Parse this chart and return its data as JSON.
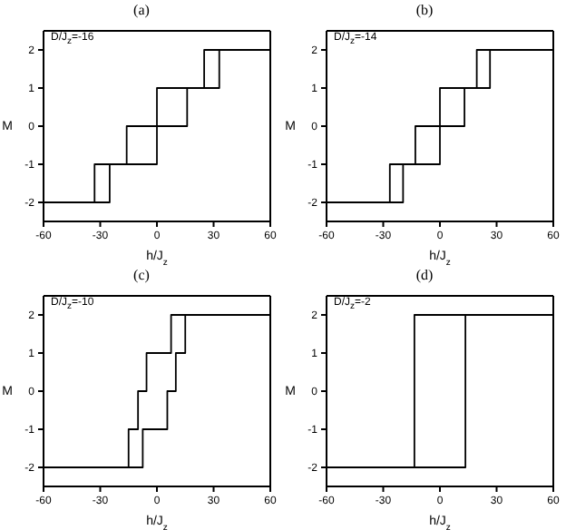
{
  "chart_data": [
    {
      "type": "step",
      "title": "(a)",
      "xlabel": "h/J$_{z}$",
      "ylabel": "M",
      "annotations": [
        "D/J$_{z}$=-16"
      ],
      "xlim": [
        -60,
        60
      ],
      "xticks": [
        -60,
        -30,
        0,
        30,
        60
      ],
      "ylim": [
        -2.5,
        2.5
      ],
      "yticks": [
        -2,
        -1,
        0,
        1,
        2
      ],
      "series": [
        {
          "color": "#000000",
          "x": [
            -60,
            -33,
            -16,
            0,
            25,
            60
          ],
          "values": [
            -2,
            -1,
            0,
            1,
            2,
            2
          ]
        },
        {
          "color": "#000000",
          "x": [
            -60,
            -25,
            0,
            16,
            33,
            60
          ],
          "values": [
            -2,
            -1,
            0,
            1,
            2,
            2
          ]
        }
      ]
    },
    {
      "type": "step",
      "title": "(b)",
      "xlabel": "h/J$_{z}$",
      "ylabel": "M",
      "annotations": [
        "D/J$_{z}$=-14"
      ],
      "xlim": [
        -60,
        60
      ],
      "xticks": [
        -60,
        -30,
        0,
        30,
        60
      ],
      "ylim": [
        -2.5,
        2.5
      ],
      "yticks": [
        -2,
        -1,
        0,
        1,
        2
      ],
      "series": [
        {
          "color": "#000000",
          "x": [
            -60,
            -26.5,
            -13,
            0,
            19.5,
            60
          ],
          "values": [
            -2,
            -1,
            0,
            1,
            2,
            2
          ]
        },
        {
          "color": "#000000",
          "x": [
            -60,
            -19.5,
            0,
            13,
            26.5,
            60
          ],
          "values": [
            -2,
            -1,
            0,
            1,
            2,
            2
          ]
        }
      ]
    },
    {
      "type": "step",
      "title": "(c)",
      "xlabel": "h/J$_{z}$",
      "ylabel": "M",
      "annotations": [
        "D/J$_{z}$=-10"
      ],
      "xlim": [
        -60,
        60
      ],
      "xticks": [
        -60,
        -30,
        0,
        30,
        60
      ],
      "ylim": [
        -2.5,
        2.5
      ],
      "yticks": [
        -2,
        -1,
        0,
        1,
        2
      ],
      "series": [
        {
          "color": "#000000",
          "x": [
            -60,
            -15,
            -10,
            -5.5,
            7.5,
            60
          ],
          "values": [
            -2,
            -1,
            0,
            1,
            2,
            2
          ]
        },
        {
          "color": "#000000",
          "x": [
            -60,
            -7.5,
            5.5,
            10,
            15,
            60
          ],
          "values": [
            -2,
            -1,
            0,
            1,
            2,
            2
          ]
        }
      ]
    },
    {
      "type": "step",
      "title": "(d)",
      "xlabel": "h/J$_{z}$",
      "ylabel": "M",
      "annotations": [
        "D/J$_{z}$=-2"
      ],
      "xlim": [
        -60,
        60
      ],
      "xticks": [
        -60,
        -30,
        0,
        30,
        60
      ],
      "ylim": [
        -2.5,
        2.5
      ],
      "yticks": [
        -2,
        -1,
        0,
        1,
        2
      ],
      "series": [
        {
          "color": "#000000",
          "x": [
            -60,
            -13.5,
            60
          ],
          "values": [
            -2,
            2,
            2
          ]
        },
        {
          "color": "#000000",
          "x": [
            -60,
            13.5,
            60
          ],
          "values": [
            -2,
            2,
            2
          ]
        }
      ]
    }
  ]
}
